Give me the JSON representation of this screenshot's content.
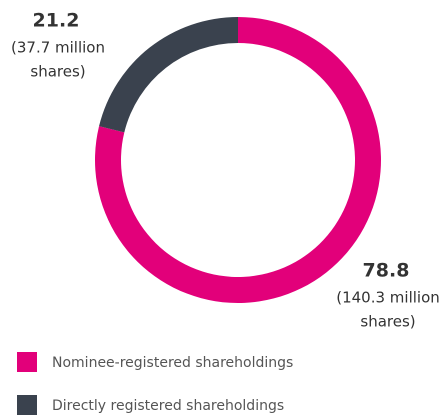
{
  "chart_data": {
    "type": "pie",
    "donut": true,
    "categories": [
      "Nominee-registered shareholdings",
      "Directly registered shareholdings"
    ],
    "values": [
      78.8,
      21.2
    ],
    "colors": [
      "#e2007a",
      "#3a424e"
    ],
    "annotations": [
      [
        "(140.3 million",
        "shares)"
      ],
      [
        "(37.7 million",
        "shares)"
      ]
    ],
    "legend": "bottom-left"
  }
}
